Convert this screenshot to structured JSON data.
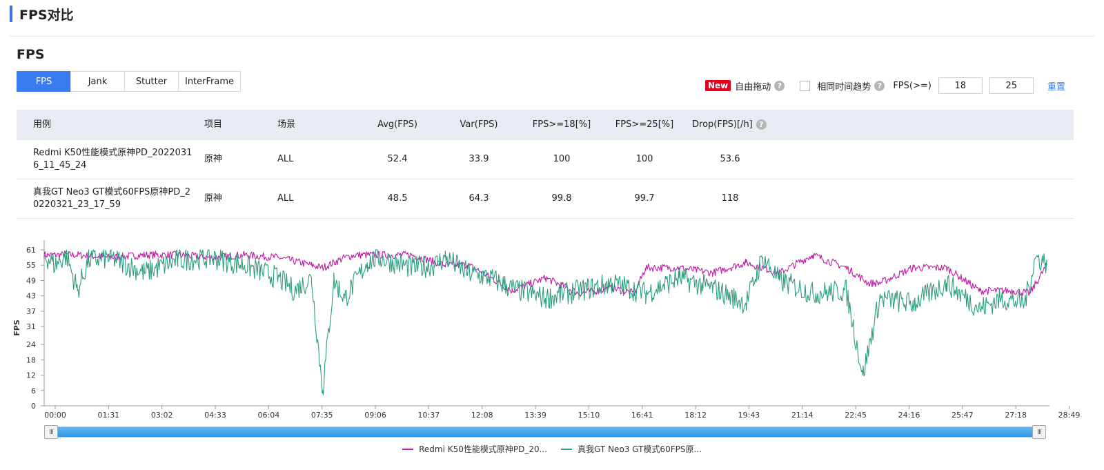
{
  "page_title": "FPS对比",
  "section_title": "FPS",
  "tabs": [
    {
      "label": "FPS",
      "active": true
    },
    {
      "label": "Jank",
      "active": false
    },
    {
      "label": "Stutter",
      "active": false
    },
    {
      "label": "InterFrame",
      "active": false
    }
  ],
  "controls": {
    "new_badge": "New",
    "free_drag_label": "自由拖动",
    "help_glyph": "?",
    "same_time_trend_label": "相同时间趋势",
    "same_time_trend_checked": false,
    "fps_threshold_label": "FPS(>=)",
    "threshold_1": "18",
    "threshold_2": "25",
    "reset_label": "重置"
  },
  "table": {
    "headers": [
      "用例",
      "项目",
      "场景",
      "Avg(FPS)",
      "Var(FPS)",
      "FPS>=18[%]",
      "FPS>=25[%]",
      "Drop(FPS)[/h]"
    ],
    "rows": [
      {
        "case": "Redmi K50性能模式原神PD_20220316_11_45_24",
        "project": "原神",
        "scene": "ALL",
        "avg": "52.4",
        "var": "33.9",
        "fps18": "100",
        "fps25": "100",
        "drop": "53.6"
      },
      {
        "case": "真我GT Neo3 GT模式60FPS原神PD_20220321_23_17_59",
        "project": "原神",
        "scene": "ALL",
        "avg": "48.5",
        "var": "64.3",
        "fps18": "99.8",
        "fps25": "99.7",
        "drop": "118"
      }
    ]
  },
  "chart_data": {
    "type": "line",
    "title": "",
    "xlabel": "",
    "ylabel": "FPS",
    "y_ticks": [
      0,
      6,
      12,
      18,
      24,
      31,
      37,
      43,
      49,
      55,
      61
    ],
    "ylim": [
      0,
      61
    ],
    "x_ticks": [
      "00:00",
      "01:31",
      "03:02",
      "04:33",
      "06:04",
      "07:35",
      "09:06",
      "10:37",
      "12:08",
      "13:39",
      "15:10",
      "16:41",
      "18:12",
      "19:43",
      "21:14",
      "22:45",
      "24:16",
      "25:47",
      "27:18",
      "28:49"
    ],
    "x_range_seconds": [
      0,
      1800
    ],
    "grid": false,
    "legend_position": "bottom",
    "series": [
      {
        "name": "Redmi K50性能模式原神PD_20...",
        "color": "#c21aa8",
        "x": [
          0,
          60,
          120,
          180,
          240,
          300,
          360,
          420,
          480,
          500,
          540,
          560,
          600,
          660,
          720,
          760,
          780,
          840,
          900,
          960,
          1020,
          1060,
          1080,
          1140,
          1200,
          1260,
          1320,
          1380,
          1440,
          1480,
          1500,
          1560,
          1620,
          1680,
          1740,
          1770,
          1800
        ],
        "values": [
          59,
          59,
          58,
          59,
          59,
          58,
          59,
          58,
          55,
          54,
          58,
          59,
          59,
          59,
          55,
          55,
          53,
          45,
          50,
          44,
          46,
          44,
          54,
          54,
          52,
          56,
          52,
          59,
          54,
          48,
          48,
          54,
          54,
          45,
          45,
          44,
          55
        ]
      },
      {
        "name": "真我GT Neo3 GT模式60FPS原...",
        "color": "#2a9d7e",
        "x": [
          0,
          20,
          40,
          60,
          80,
          120,
          180,
          240,
          300,
          360,
          420,
          450,
          480,
          500,
          520,
          540,
          580,
          600,
          660,
          700,
          720,
          760,
          800,
          840,
          900,
          960,
          1020,
          1080,
          1140,
          1200,
          1260,
          1290,
          1320,
          1380,
          1440,
          1470,
          1500,
          1560,
          1620,
          1680,
          1720,
          1760,
          1780,
          1800
        ],
        "values": [
          59,
          55,
          59,
          45,
          57,
          58,
          52,
          57,
          58,
          55,
          50,
          45,
          50,
          6,
          49,
          42,
          56,
          58,
          54,
          55,
          58,
          52,
          50,
          46,
          42,
          45,
          48,
          44,
          50,
          46,
          40,
          58,
          49,
          44,
          45,
          12,
          42,
          40,
          48,
          38,
          42,
          40,
          58,
          56
        ]
      }
    ]
  }
}
